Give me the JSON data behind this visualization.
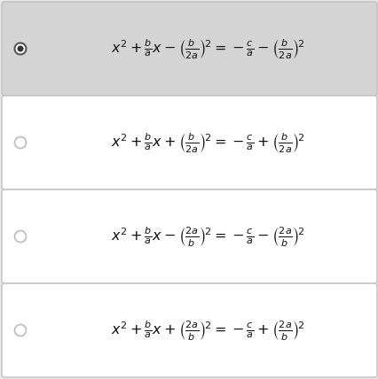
{
  "background_color": "#e8e8e8",
  "box_bg_selected": "#d4d4d4",
  "box_bg_unselected": "#ffffff",
  "box_border_color": "#c0c0c0",
  "equations": [
    {
      "latex": "$x^2+\\frac{b}{a}x-\\left(\\frac{b}{2a}\\right)^{\\!2}=-\\frac{c}{a}-\\left(\\frac{b}{2a}\\right)^{\\!2}$",
      "selected": true
    },
    {
      "latex": "$x^2+\\frac{b}{a}x+\\left(\\frac{b}{2a}\\right)^{\\!2}=-\\frac{c}{a}+\\left(\\frac{b}{2a}\\right)^{\\!2}$",
      "selected": false
    },
    {
      "latex": "$x^2+\\frac{b}{a}x-\\left(\\frac{2a}{b}\\right)^{\\!2}=-\\frac{c}{a}-\\left(\\frac{2a}{b}\\right)^{\\!2}$",
      "selected": false
    },
    {
      "latex": "$x^2+\\frac{b}{a}x+\\left(\\frac{2a}{b}\\right)^{\\!2}=-\\frac{c}{a}+\\left(\\frac{2a}{b}\\right)^{\\!2}$",
      "selected": false
    }
  ],
  "radio_dot_color": "#333333",
  "radio_ring_selected": "#555555",
  "radio_ring_unselected": "#bbbbbb",
  "text_color": "#111111",
  "eq_fontsize": 11.5,
  "fig_width": 4.27,
  "fig_height": 4.28,
  "dpi": 100
}
